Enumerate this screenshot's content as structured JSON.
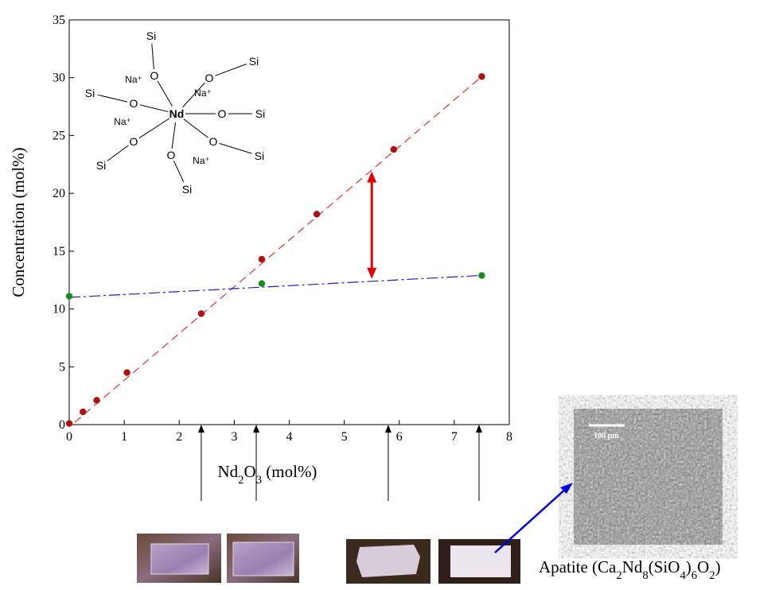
{
  "chart_data": {
    "type": "scatter",
    "xlim": [
      0,
      8
    ],
    "xticks": [
      0,
      1,
      2,
      3,
      4,
      5,
      6,
      7,
      8
    ],
    "ylim": [
      0,
      35
    ],
    "yticks": [
      0,
      5,
      10,
      15,
      20,
      25,
      30,
      35
    ],
    "xlabel": [
      {
        "text": "Nd"
      },
      {
        "text": "2",
        "sub": true
      },
      {
        "text": "O"
      },
      {
        "text": "3",
        "sub": true
      },
      {
        "text": " (mol%)"
      }
    ],
    "ylabel": "Concentration (mol%)",
    "series": [
      {
        "color": "#b01010",
        "x": [
          0,
          0.25,
          0.5,
          1.05,
          2.4,
          3.5,
          4.5,
          5.9,
          7.5
        ],
        "values": [
          0.1,
          1.1,
          2.1,
          4.5,
          9.6,
          14.3,
          18.2,
          23.8,
          30.1
        ]
      },
      {
        "color": "#1a8a1a",
        "x": [
          0,
          3.5,
          7.5
        ],
        "values": [
          11.1,
          12.2,
          12.9
        ]
      }
    ],
    "fit_lines": [
      {
        "color": "#e03030",
        "dash": "10 6",
        "x": [
          0.1,
          7.5
        ],
        "values": [
          0.2,
          30.1
        ]
      },
      {
        "color": "#2020c0",
        "dash": "14 4 3 4",
        "x": [
          0,
          7.5
        ],
        "values": [
          11,
          12.9
        ]
      }
    ],
    "gap_arrow": {
      "color": "#e00000",
      "x": 5.5,
      "values": [
        12.6,
        21.9
      ]
    },
    "sample_arrows_x": [
      2.4,
      3.4,
      5.8,
      7.45
    ],
    "structure": {
      "center": "Nd",
      "oxygens": [
        "O",
        "O",
        "O",
        "O",
        "O",
        "O",
        "O"
      ],
      "silicons": [
        "Si",
        "Si",
        "Si",
        "Si",
        "Si",
        "Si",
        "Si"
      ],
      "sodiums": [
        "Na⁺",
        "Na⁺",
        "Na⁺",
        "Na⁺"
      ]
    },
    "scale_bar": "100 µm",
    "caption": [
      {
        "text": "Apatite (Ca"
      },
      {
        "text": "2",
        "sub": true
      },
      {
        "text": "Nd"
      },
      {
        "text": "8",
        "sub": true
      },
      {
        "text": "(SiO"
      },
      {
        "text": "4",
        "sub": true
      },
      {
        "text": ")"
      },
      {
        "text": "6",
        "sub": true
      },
      {
        "text": "O"
      },
      {
        "text": "2",
        "sub": true
      },
      {
        "text": ")"
      }
    ]
  }
}
